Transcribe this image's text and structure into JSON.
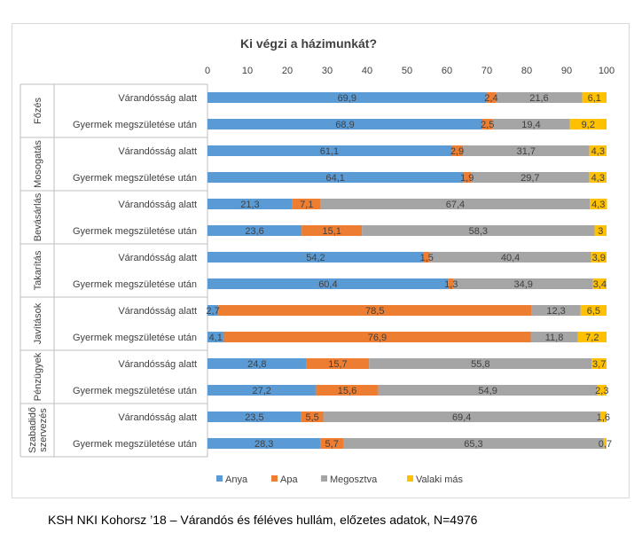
{
  "chart_data": {
    "type": "bar",
    "stacked": true,
    "orientation": "horizontal",
    "title": "Ki végzi a házimunkát?",
    "xlim": [
      0,
      100
    ],
    "xticks": [
      0,
      10,
      20,
      30,
      40,
      50,
      60,
      70,
      80,
      90,
      100
    ],
    "grid": false,
    "legend_position": "bottom",
    "groups": [
      {
        "name": "Főzés",
        "rows": [
          0,
          1
        ]
      },
      {
        "name": "Mosogatás",
        "rows": [
          2,
          3
        ]
      },
      {
        "name": "Bevásárlás",
        "rows": [
          4,
          5
        ]
      },
      {
        "name": "Takarítás",
        "rows": [
          6,
          7
        ]
      },
      {
        "name": "Javítások",
        "rows": [
          8,
          9
        ]
      },
      {
        "name": "Pénzügyek",
        "rows": [
          10,
          11
        ]
      },
      {
        "name": "Szabadidő szervezés",
        "rows": [
          12,
          13
        ]
      }
    ],
    "categories": [
      "Várandósság alatt",
      "Gyermek megszületése után",
      "Várandósság alatt",
      "Gyermek megszületése után",
      "Várandósság alatt",
      "Gyermek megszületése után",
      "Várandósság alatt",
      "Gyermek megszületése után",
      "Várandósság alatt",
      "Gyermek megszületése után",
      "Várandósság alatt",
      "Gyermek megszületése után",
      "Várandósság alatt",
      "Gyermek megszületése után"
    ],
    "series": [
      {
        "name": "Anya",
        "color": "#5b9bd5",
        "values": [
          69.9,
          68.9,
          61.1,
          64.1,
          21.3,
          23.6,
          54.2,
          60.4,
          2.7,
          4.1,
          24.8,
          27.2,
          23.5,
          28.3
        ],
        "labels": [
          "69,9",
          "68,9",
          "61,1",
          "64,1",
          "21,3",
          "23,6",
          "54,2",
          "60,4",
          "2,7",
          "4,1",
          "24,8",
          "27,2",
          "23,5",
          "28,3"
        ]
      },
      {
        "name": "Apa",
        "color": "#ed7d31",
        "values": [
          2.4,
          2.5,
          2.9,
          1.9,
          7.1,
          15.1,
          1.5,
          1.3,
          78.5,
          76.9,
          15.7,
          15.6,
          5.5,
          5.7
        ],
        "labels": [
          "2,4",
          "2,5",
          "2,9",
          "1,9",
          "7,1",
          "15,1",
          "1,5",
          "1,3",
          "78,5",
          "76,9",
          "15,7",
          "15,6",
          "5,5",
          "5,7"
        ]
      },
      {
        "name": "Megosztva",
        "color": "#a5a5a5",
        "values": [
          21.6,
          19.4,
          31.7,
          29.7,
          67.4,
          58.3,
          40.4,
          34.9,
          12.3,
          11.8,
          55.8,
          54.9,
          69.4,
          65.3
        ],
        "labels": [
          "21,6",
          "19,4",
          "31,7",
          "29,7",
          "67,4",
          "58,3",
          "40,4",
          "34,9",
          "12,3",
          "11,8",
          "55,8",
          "54,9",
          "69,4",
          "65,3"
        ]
      },
      {
        "name": "Valaki más",
        "color": "#ffc000",
        "values": [
          6.1,
          9.2,
          4.3,
          4.3,
          4.3,
          3,
          3.9,
          3.4,
          6.5,
          7.2,
          3.7,
          2.3,
          1.6,
          0.7
        ],
        "labels": [
          "6,1",
          "9,2",
          "4,3",
          "4,3",
          "4,3",
          "3",
          "3,9",
          "3,4",
          "6,5",
          "7,2",
          "3,7",
          "2,3",
          "1,6",
          "0,7"
        ]
      }
    ]
  },
  "footer": "KSH NKI Kohorsz ’18 – Várandós és féléves hullám, előzetes adatok, N=4976"
}
